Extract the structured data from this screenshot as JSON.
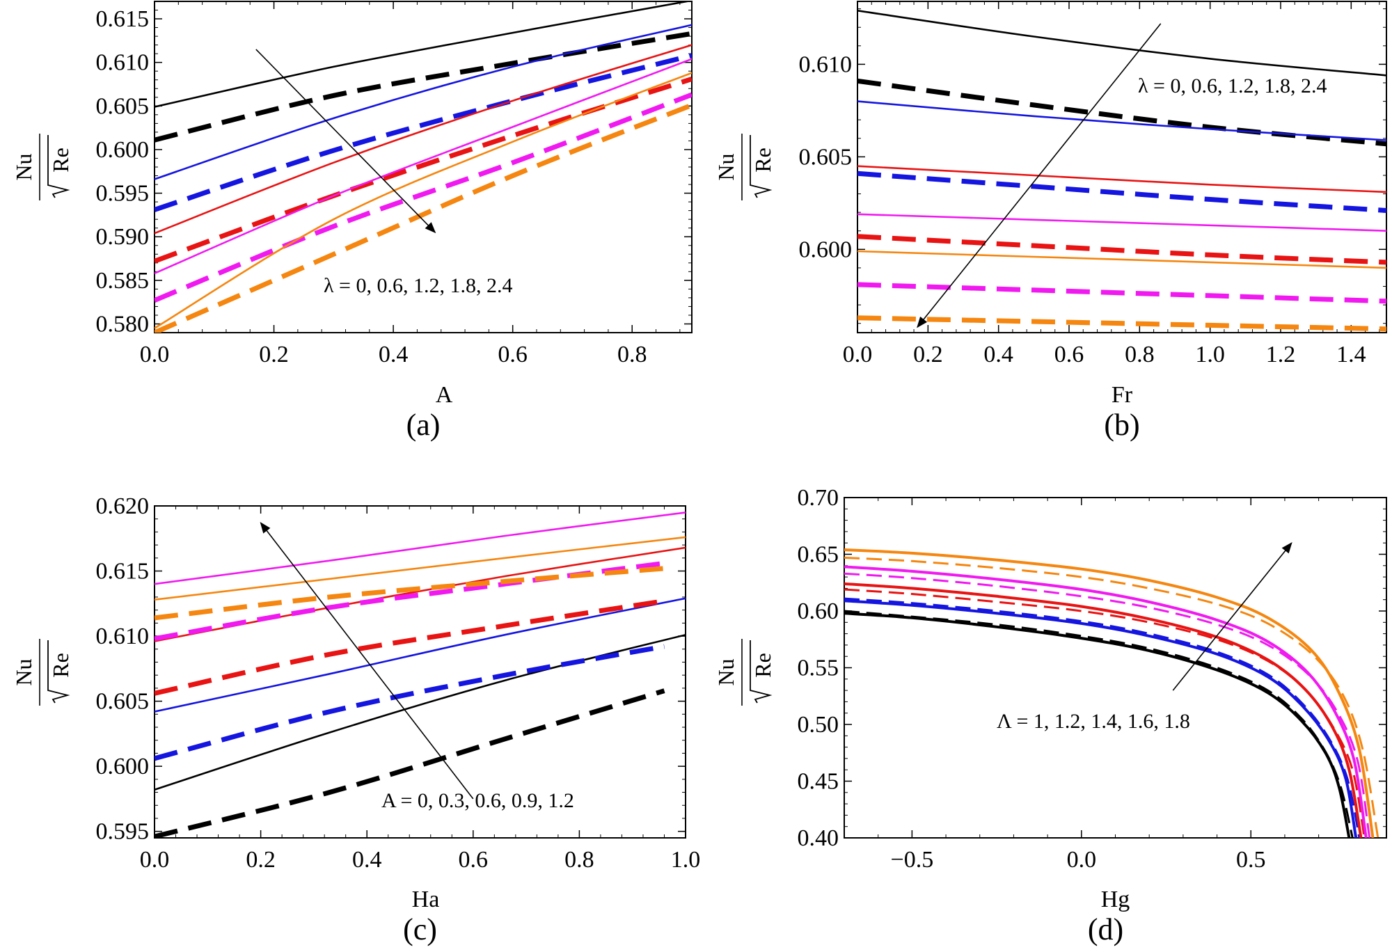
{
  "colors": {
    "black": "#000000",
    "blue": "#1515e0",
    "red": "#e81313",
    "magenta": "#f01af0",
    "orange": "#f5860f"
  },
  "chart_data": [
    {
      "type": "line",
      "panel_label": "(a)",
      "xlabel": "A",
      "ylabel_num": "Nu",
      "ylabel_den": "Re",
      "xlim": [
        0,
        0.9
      ],
      "ylim": [
        0.579,
        0.617
      ],
      "xticks": [
        0.0,
        0.2,
        0.4,
        0.6,
        0.8
      ],
      "xtick_labels": [
        "0.0",
        "0.2",
        "0.4",
        "0.6",
        "0.8"
      ],
      "yticks": [
        0.58,
        0.585,
        0.59,
        0.595,
        0.6,
        0.605,
        0.61,
        0.615
      ],
      "ytick_labels": [
        "0.580",
        "0.585",
        "0.590",
        "0.595",
        "0.600",
        "0.605",
        "0.610",
        "0.615"
      ],
      "annotation": "λ = 0, 0.6, 1.2, 1.8, 2.4",
      "arrow": {
        "from": [
          0.17,
          0.6115
        ],
        "to": [
          0.47,
          0.5905
        ]
      },
      "series": [
        {
          "name": "λ = 0 solid",
          "color": "black",
          "dashed": false,
          "x": [
            0,
            0.3,
            0.6,
            0.9
          ],
          "y": [
            0.6049,
            0.6095,
            0.6134,
            0.6171
          ]
        },
        {
          "name": "λ = 0 dashed",
          "color": "black",
          "dashed": true,
          "x": [
            0,
            0.3,
            0.6,
            0.9
          ],
          "y": [
            0.6011,
            0.6062,
            0.6099,
            0.6133
          ]
        },
        {
          "name": "λ = 0.6 solid",
          "color": "blue",
          "dashed": false,
          "x": [
            0,
            0.3,
            0.6,
            0.9
          ],
          "y": [
            0.5966,
            0.6036,
            0.6095,
            0.6143
          ]
        },
        {
          "name": "λ = 0.6 dashed",
          "color": "blue",
          "dashed": true,
          "x": [
            0,
            0.3,
            0.6,
            0.9
          ],
          "y": [
            0.5931,
            0.5999,
            0.6056,
            0.6108
          ]
        },
        {
          "name": "λ = 1.2 solid",
          "color": "red",
          "dashed": false,
          "x": [
            0,
            0.3,
            0.6,
            0.9
          ],
          "y": [
            0.5904,
            0.5985,
            0.6056,
            0.612
          ]
        },
        {
          "name": "λ = 1.2 dashed",
          "color": "red",
          "dashed": true,
          "x": [
            0,
            0.3,
            0.6,
            0.9
          ],
          "y": [
            0.5872,
            0.5947,
            0.6016,
            0.6081
          ]
        },
        {
          "name": "λ = 1.8 solid",
          "color": "magenta",
          "dashed": false,
          "x": [
            0,
            0.3,
            0.6,
            0.9
          ],
          "y": [
            0.5858,
            0.5947,
            0.6026,
            0.6104
          ]
        },
        {
          "name": "λ = 1.8 dashed",
          "color": "magenta",
          "dashed": true,
          "x": [
            0,
            0.3,
            0.6,
            0.9
          ],
          "y": [
            0.5827,
            0.5912,
            0.5985,
            0.6063
          ]
        },
        {
          "name": "λ = 2.4 solid",
          "color": "orange",
          "dashed": false,
          "x": [
            0,
            0.3,
            0.6,
            0.9
          ],
          "y": [
            0.5795,
            0.592,
            0.6009,
            0.6088
          ]
        },
        {
          "name": "λ = 2.4 dashed",
          "color": "orange",
          "dashed": true,
          "x": [
            0,
            0.3,
            0.6,
            0.9
          ],
          "y": [
            0.579,
            0.588,
            0.597,
            0.6051
          ]
        }
      ]
    },
    {
      "type": "line",
      "panel_label": "(b)",
      "xlabel": "Fr",
      "ylabel_num": "Nu",
      "ylabel_den": "Re",
      "xlim": [
        0,
        1.5
      ],
      "ylim": [
        0.5955,
        0.6134
      ],
      "xticks": [
        0.0,
        0.2,
        0.4,
        0.6,
        0.8,
        1.0,
        1.2,
        1.4
      ],
      "xtick_labels": [
        "0.0",
        "0.2",
        "0.4",
        "0.6",
        "0.8",
        "1.0",
        "1.2",
        "1.4"
      ],
      "yticks": [
        0.6,
        0.605,
        0.61
      ],
      "ytick_labels": [
        "0.600",
        "0.605",
        "0.610"
      ],
      "annotation": "λ = 0, 0.6, 1.2, 1.8, 2.4",
      "arrow": {
        "from": [
          0.86,
          0.6122
        ],
        "to": [
          0.17,
          0.5958
        ]
      },
      "series": [
        {
          "name": "λ = 0 solid",
          "color": "black",
          "dashed": false,
          "x": [
            0,
            0.5,
            1.0,
            1.5
          ],
          "y": [
            0.6129,
            0.6115,
            0.6103,
            0.6094
          ]
        },
        {
          "name": "λ = 0 dashed",
          "color": "black",
          "dashed": true,
          "x": [
            0,
            0.5,
            1.0,
            1.5
          ],
          "y": [
            0.6091,
            0.6078,
            0.6066,
            0.6057
          ]
        },
        {
          "name": "λ = 0.6 solid",
          "color": "blue",
          "dashed": false,
          "x": [
            0,
            0.5,
            1.0,
            1.5
          ],
          "y": [
            0.608,
            0.6072,
            0.6065,
            0.6059
          ]
        },
        {
          "name": "λ = 0.6 dashed",
          "color": "blue",
          "dashed": true,
          "x": [
            0,
            0.5,
            1.0,
            1.5
          ],
          "y": [
            0.6041,
            0.6034,
            0.6027,
            0.6021
          ]
        },
        {
          "name": "λ = 1.2 solid",
          "color": "red",
          "dashed": false,
          "x": [
            0,
            0.5,
            1.0,
            1.5
          ],
          "y": [
            0.6045,
            0.604,
            0.6035,
            0.6031
          ]
        },
        {
          "name": "λ = 1.2 dashed",
          "color": "red",
          "dashed": true,
          "x": [
            0,
            0.5,
            1.0,
            1.5
          ],
          "y": [
            0.6007,
            0.6002,
            0.5997,
            0.5993
          ]
        },
        {
          "name": "λ = 1.8 solid",
          "color": "magenta",
          "dashed": false,
          "x": [
            0,
            0.5,
            1.0,
            1.5
          ],
          "y": [
            0.6019,
            0.6016,
            0.6013,
            0.601
          ]
        },
        {
          "name": "λ = 1.8 dashed",
          "color": "magenta",
          "dashed": true,
          "x": [
            0,
            0.5,
            1.0,
            1.5
          ],
          "y": [
            0.5981,
            0.5978,
            0.5975,
            0.5972
          ]
        },
        {
          "name": "λ = 2.4 solid",
          "color": "orange",
          "dashed": false,
          "x": [
            0,
            0.5,
            1.0,
            1.5
          ],
          "y": [
            0.5999,
            0.5996,
            0.5993,
            0.599
          ]
        },
        {
          "name": "λ = 2.4 dashed",
          "color": "orange",
          "dashed": true,
          "x": [
            0,
            0.5,
            1.0,
            1.5
          ],
          "y": [
            0.5963,
            0.5961,
            0.5959,
            0.5957
          ]
        }
      ]
    },
    {
      "type": "line",
      "panel_label": "(c)",
      "xlabel": "Ha",
      "ylabel_num": "Nu",
      "ylabel_den": "Re",
      "xlim": [
        0,
        1.0
      ],
      "ylim": [
        0.5945,
        0.62
      ],
      "xticks": [
        0.0,
        0.2,
        0.4,
        0.6,
        0.8,
        1.0
      ],
      "xtick_labels": [
        "0.0",
        "0.2",
        "0.4",
        "0.6",
        "0.8",
        "1.0"
      ],
      "yticks": [
        0.595,
        0.6,
        0.605,
        0.61,
        0.615,
        0.62
      ],
      "ytick_labels": [
        "0.595",
        "0.600",
        "0.605",
        "0.610",
        "0.615",
        "0.620"
      ],
      "annotation": "A = 0, 0.3, 0.6, 0.9, 1.2",
      "arrow": {
        "from": [
          0.6,
          0.5975
        ],
        "to": [
          0.2,
          0.6187
        ]
      },
      "series": [
        {
          "name": "A = 0 solid",
          "color": "black",
          "dashed": false,
          "x": [
            0,
            0.33,
            0.66,
            1.0
          ],
          "y": [
            0.5982,
            0.6026,
            0.6066,
            0.6101
          ]
        },
        {
          "name": "A = 0 dashed",
          "color": "black",
          "dashed": true,
          "x": [
            0,
            0.33,
            0.66,
            0.96
          ],
          "y": [
            0.5946,
            0.598,
            0.6021,
            0.6058
          ]
        },
        {
          "name": "A = 0.3 solid",
          "color": "blue",
          "dashed": false,
          "x": [
            0,
            0.33,
            0.66,
            1.0
          ],
          "y": [
            0.6042,
            0.6071,
            0.6101,
            0.6129
          ]
        },
        {
          "name": "A = 0.3 dashed",
          "color": "blue",
          "dashed": true,
          "x": [
            0,
            0.33,
            0.66,
            0.96
          ],
          "y": [
            0.6006,
            0.6042,
            0.607,
            0.6092
          ]
        },
        {
          "name": "A = 0.6 solid",
          "color": "red",
          "dashed": false,
          "x": [
            0,
            0.33,
            0.66,
            1.0
          ],
          "y": [
            0.6096,
            0.6122,
            0.6146,
            0.6168
          ]
        },
        {
          "name": "A = 0.6 dashed",
          "color": "red",
          "dashed": true,
          "x": [
            0,
            0.33,
            0.66,
            0.96
          ],
          "y": [
            0.6056,
            0.6086,
            0.6108,
            0.6127
          ]
        },
        {
          "name": "A = 0.9 solid",
          "color": "magenta",
          "dashed": false,
          "x": [
            0,
            0.33,
            0.66,
            1.0
          ],
          "y": [
            0.614,
            0.6158,
            0.6177,
            0.6195
          ]
        },
        {
          "name": "A = 0.9 dashed",
          "color": "magenta",
          "dashed": true,
          "x": [
            0,
            0.33,
            0.66,
            0.96
          ],
          "y": [
            0.6098,
            0.6122,
            0.614,
            0.6156
          ]
        },
        {
          "name": "A = 1.2 solid",
          "color": "orange",
          "dashed": false,
          "x": [
            0,
            0.33,
            0.66,
            1.0
          ],
          "y": [
            0.6128,
            0.6144,
            0.616,
            0.6176
          ]
        },
        {
          "name": "A = 1.2 dashed",
          "color": "orange",
          "dashed": true,
          "x": [
            0,
            0.33,
            0.66,
            0.96
          ],
          "y": [
            0.6114,
            0.613,
            0.6142,
            0.6152
          ]
        }
      ]
    },
    {
      "type": "line",
      "panel_label": "(d)",
      "xlabel": "Hg",
      "ylabel_num": "Nu",
      "ylabel_den": "Re",
      "xlim": [
        -0.7,
        0.9
      ],
      "ylim": [
        0.4,
        0.7
      ],
      "xticks": [
        -0.5,
        0.0,
        0.5
      ],
      "xtick_labels": [
        "−0.5",
        "0.0",
        "0.5"
      ],
      "yticks": [
        0.4,
        0.45,
        0.5,
        0.55,
        0.6,
        0.65,
        0.7
      ],
      "ytick_labels": [
        "0.40",
        "0.45",
        "0.50",
        "0.55",
        "0.60",
        "0.65",
        "0.70"
      ],
      "annotation": "Λ = 1, 1.2, 1.4, 1.6, 1.8",
      "arrow": {
        "from": [
          0.27,
          0.53
        ],
        "to": [
          0.62,
          0.66
        ]
      },
      "series": [
        {
          "name": "Λ = 1 solid",
          "color": "black",
          "dashed": false,
          "x": [
            -0.7,
            -0.5,
            -0.25,
            0,
            0.2,
            0.4,
            0.55,
            0.65,
            0.72,
            0.76,
            0.79
          ],
          "y": [
            0.598,
            0.594,
            0.586,
            0.576,
            0.565,
            0.548,
            0.528,
            0.503,
            0.475,
            0.445,
            0.4
          ]
        },
        {
          "name": "Λ = 1 dashed",
          "color": "black",
          "dashed": true,
          "x": [
            -0.7,
            -0.5,
            -0.25,
            0,
            0.2,
            0.4,
            0.55,
            0.65,
            0.72,
            0.765,
            0.8
          ],
          "y": [
            0.6,
            0.595,
            0.588,
            0.578,
            0.567,
            0.55,
            0.53,
            0.505,
            0.476,
            0.445,
            0.4
          ]
        },
        {
          "name": "Λ = 1.2 solid",
          "color": "blue",
          "dashed": false,
          "x": [
            -0.7,
            -0.5,
            -0.25,
            0,
            0.2,
            0.4,
            0.55,
            0.65,
            0.73,
            0.78,
            0.81
          ],
          "y": [
            0.609,
            0.605,
            0.598,
            0.589,
            0.578,
            0.562,
            0.542,
            0.517,
            0.486,
            0.452,
            0.4
          ]
        },
        {
          "name": "Λ = 1.2 dashed",
          "color": "blue",
          "dashed": true,
          "x": [
            -0.7,
            -0.5,
            -0.25,
            0,
            0.2,
            0.4,
            0.55,
            0.65,
            0.73,
            0.785,
            0.82
          ],
          "y": [
            0.611,
            0.607,
            0.6,
            0.591,
            0.58,
            0.564,
            0.544,
            0.519,
            0.488,
            0.452,
            0.4
          ]
        },
        {
          "name": "Λ = 1.4 solid",
          "color": "red",
          "dashed": false,
          "x": [
            -0.7,
            -0.5,
            -0.25,
            0,
            0.2,
            0.4,
            0.55,
            0.66,
            0.74,
            0.79,
            0.825
          ],
          "y": [
            0.624,
            0.62,
            0.613,
            0.604,
            0.593,
            0.577,
            0.557,
            0.531,
            0.498,
            0.46,
            0.4
          ]
        },
        {
          "name": "Λ = 1.4 dashed",
          "color": "red",
          "dashed": true,
          "x": [
            -0.7,
            -0.5,
            -0.25,
            0,
            0.2,
            0.4,
            0.55,
            0.66,
            0.74,
            0.8,
            0.835
          ],
          "y": [
            0.619,
            0.615,
            0.608,
            0.6,
            0.59,
            0.575,
            0.556,
            0.531,
            0.499,
            0.46,
            0.4
          ]
        },
        {
          "name": "Λ = 1.6 solid",
          "color": "magenta",
          "dashed": false,
          "x": [
            -0.7,
            -0.5,
            -0.25,
            0,
            0.2,
            0.4,
            0.55,
            0.67,
            0.75,
            0.805,
            0.84
          ],
          "y": [
            0.639,
            0.635,
            0.628,
            0.619,
            0.608,
            0.592,
            0.573,
            0.545,
            0.51,
            0.468,
            0.4
          ]
        },
        {
          "name": "Λ = 1.6 dashed",
          "color": "magenta",
          "dashed": true,
          "x": [
            -0.7,
            -0.5,
            -0.25,
            0,
            0.2,
            0.4,
            0.55,
            0.67,
            0.755,
            0.815,
            0.85
          ],
          "y": [
            0.633,
            0.629,
            0.622,
            0.613,
            0.603,
            0.588,
            0.57,
            0.544,
            0.511,
            0.468,
            0.4
          ]
        },
        {
          "name": "Λ = 1.8 solid",
          "color": "orange",
          "dashed": false,
          "x": [
            -0.7,
            -0.5,
            -0.25,
            0,
            0.2,
            0.4,
            0.55,
            0.68,
            0.76,
            0.82,
            0.86
          ],
          "y": [
            0.654,
            0.651,
            0.645,
            0.637,
            0.627,
            0.612,
            0.594,
            0.565,
            0.528,
            0.478,
            0.4
          ]
        },
        {
          "name": "Λ = 1.8 dashed",
          "color": "orange",
          "dashed": true,
          "x": [
            -0.7,
            -0.5,
            -0.25,
            0,
            0.2,
            0.4,
            0.55,
            0.68,
            0.77,
            0.83,
            0.875
          ],
          "y": [
            0.647,
            0.644,
            0.638,
            0.63,
            0.62,
            0.606,
            0.589,
            0.562,
            0.527,
            0.478,
            0.4
          ]
        }
      ]
    }
  ]
}
